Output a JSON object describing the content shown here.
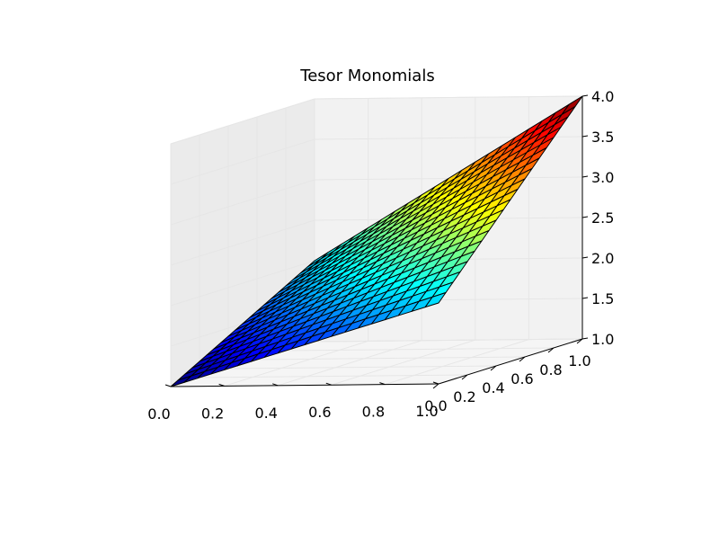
{
  "chart_data": {
    "type": "surface",
    "title": "Tesor Monomials",
    "xlabel": "",
    "ylabel": "",
    "zlabel": "",
    "xlim": [
      0.0,
      1.0
    ],
    "ylim": [
      0.0,
      1.0
    ],
    "zlim": [
      1.0,
      4.0
    ],
    "x_ticks": [
      "0.0",
      "0.2",
      "0.4",
      "0.6",
      "0.8",
      "1.0"
    ],
    "y_ticks": [
      "0.0",
      "0.2",
      "0.4",
      "0.6",
      "0.8",
      "1.0"
    ],
    "z_ticks": [
      "1.0",
      "1.5",
      "2.0",
      "2.5",
      "3.0",
      "3.5",
      "4.0"
    ],
    "surface": {
      "function": "z = (1 + x) * (1 + y)",
      "corners": [
        {
          "x": 0.0,
          "y": 0.0,
          "z": 1.0
        },
        {
          "x": 1.0,
          "y": 0.0,
          "z": 2.0
        },
        {
          "x": 0.0,
          "y": 1.0,
          "z": 2.0
        },
        {
          "x": 1.0,
          "y": 1.0,
          "z": 4.0
        }
      ],
      "x_samples": [
        0.0,
        0.05,
        0.1,
        0.15,
        0.2,
        0.25,
        0.3,
        0.35,
        0.4,
        0.45,
        0.5,
        0.55,
        0.6,
        0.65,
        0.7,
        0.75,
        0.8,
        0.85,
        0.9,
        0.95,
        1.0
      ],
      "y_samples": [
        0.0,
        0.05,
        0.1,
        0.15,
        0.2,
        0.25,
        0.3,
        0.35,
        0.4,
        0.45,
        0.5,
        0.55,
        0.6,
        0.65,
        0.7,
        0.75,
        0.8,
        0.85,
        0.9,
        0.95,
        1.0
      ],
      "colormap": "jet",
      "edge_color": "#000000"
    },
    "grid": true,
    "pane_color": "#f2f2f2",
    "gridline_color": "#e6e6e6"
  }
}
